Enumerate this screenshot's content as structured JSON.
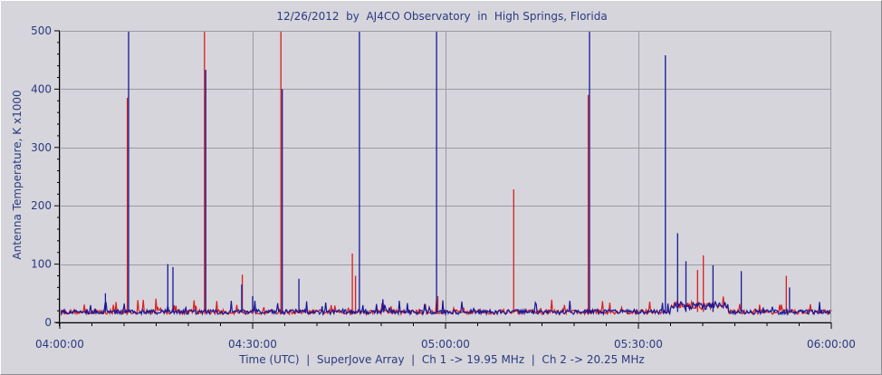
{
  "chart_data": {
    "type": "line",
    "title": "12/26/2012  by  AJ4CO Observatory  in  High Springs, Florida",
    "ylabel": "Antenna Temperature, K x1000",
    "xlabel": "Time (UTC)  |  SuperJove Array  |  Ch 1 -> 19.95 MHz  |  Ch 2 -> 20.25 MHz",
    "x_tick_labels": [
      "04:00:00",
      "04:30:00",
      "05:00:00",
      "05:30:00",
      "06:00:00"
    ],
    "x_range_minutes": [
      0,
      120
    ],
    "y_tick_labels": [
      "0",
      "100",
      "200",
      "300",
      "400",
      "500"
    ],
    "ylim": [
      0,
      500
    ],
    "grid": true,
    "baseline_level": 18,
    "series": [
      {
        "color": "#d81e1e",
        "spikes": [
          [
            10.5,
            385
          ],
          [
            22.5,
            500
          ],
          [
            34.4,
            500
          ],
          [
            45.5,
            118
          ],
          [
            46.0,
            80
          ],
          [
            58.8,
            45
          ],
          [
            70.6,
            228
          ],
          [
            82.2,
            390
          ],
          [
            99.2,
            90
          ],
          [
            100.1,
            115
          ],
          [
            113.0,
            80
          ],
          [
            28.4,
            82
          ]
        ]
      },
      {
        "color": "#16189a",
        "spikes": [
          [
            10.7,
            500
          ],
          [
            16.8,
            100
          ],
          [
            17.6,
            95
          ],
          [
            22.7,
            433
          ],
          [
            34.6,
            400
          ],
          [
            46.6,
            500
          ],
          [
            58.6,
            500
          ],
          [
            82.4,
            500
          ],
          [
            94.2,
            458
          ],
          [
            96.1,
            153
          ],
          [
            97.4,
            105
          ],
          [
            101.6,
            98
          ],
          [
            106.0,
            88
          ],
          [
            113.5,
            60
          ],
          [
            28.3,
            65
          ],
          [
            37.2,
            75
          ],
          [
            7.1,
            50
          ],
          [
            30.0,
            45
          ]
        ]
      }
    ]
  }
}
